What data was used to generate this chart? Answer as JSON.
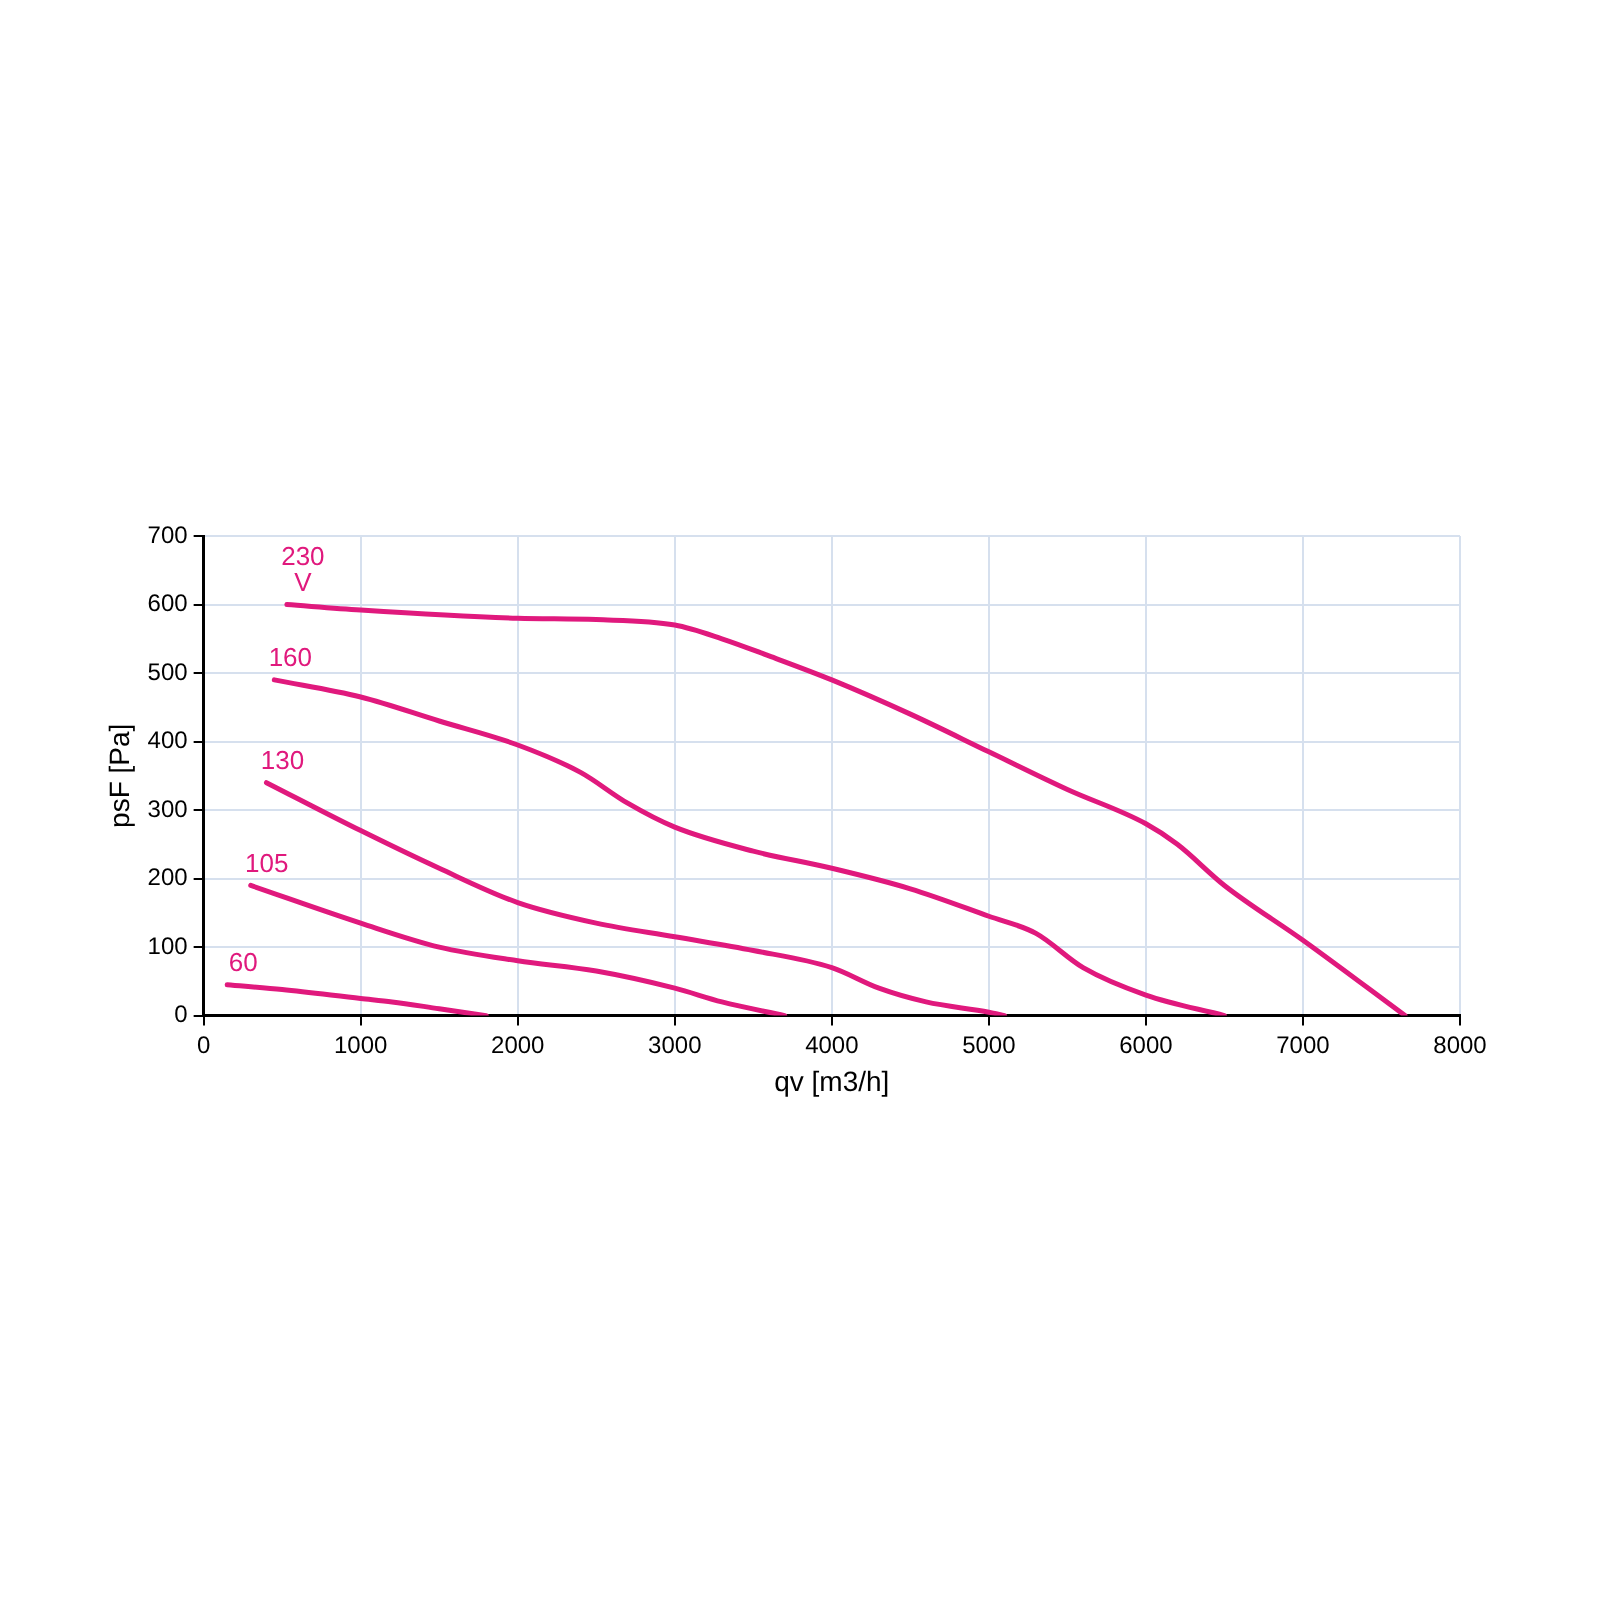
{
  "chart_data": {
    "type": "line",
    "xlabel": "qv [m3/h]",
    "ylabel": "psF [Pa]",
    "xlim": [
      0,
      8000
    ],
    "xticks": [
      0,
      1000,
      2000,
      3000,
      4000,
      5000,
      6000,
      7000,
      8000
    ],
    "ylim": [
      0,
      700
    ],
    "yticks": [
      0,
      100,
      200,
      300,
      400,
      500,
      600,
      700
    ],
    "grid": true,
    "legend": false,
    "marker": "none",
    "line_style": "solid",
    "series": [
      {
        "name": "230 V",
        "color": "#e0197d",
        "x": [
          530,
          1000,
          2000,
          2500,
          3000,
          3300,
          3600,
          4000,
          4500,
          5000,
          5500,
          6000,
          6200,
          6500,
          7000,
          7650
        ],
        "values": [
          600,
          592,
          580,
          578,
          570,
          550,
          525,
          490,
          440,
          385,
          330,
          280,
          250,
          190,
          110,
          0
        ]
      },
      {
        "name": "160",
        "color": "#e0197d",
        "x": [
          450,
          1000,
          1500,
          2000,
          2400,
          2700,
          3000,
          3500,
          4000,
          4500,
          5000,
          5300,
          5600,
          6000,
          6500
        ],
        "values": [
          490,
          465,
          430,
          395,
          355,
          310,
          275,
          240,
          215,
          185,
          145,
          120,
          70,
          30,
          0
        ]
      },
      {
        "name": "130",
        "color": "#e0197d",
        "x": [
          400,
          1000,
          1500,
          2000,
          2500,
          3000,
          3500,
          4000,
          4300,
          4600,
          5000,
          5100
        ],
        "values": [
          340,
          270,
          215,
          165,
          135,
          115,
          95,
          70,
          40,
          20,
          5,
          0
        ]
      },
      {
        "name": "105",
        "color": "#e0197d",
        "x": [
          300,
          1000,
          1500,
          2000,
          2500,
          3000,
          3300,
          3700
        ],
        "values": [
          190,
          135,
          100,
          80,
          65,
          40,
          20,
          0
        ]
      },
      {
        "name": "60",
        "color": "#e0197d",
        "x": [
          150,
          500,
          1000,
          1200,
          1500,
          1800
        ],
        "values": [
          45,
          38,
          25,
          20,
          10,
          0
        ]
      }
    ]
  }
}
